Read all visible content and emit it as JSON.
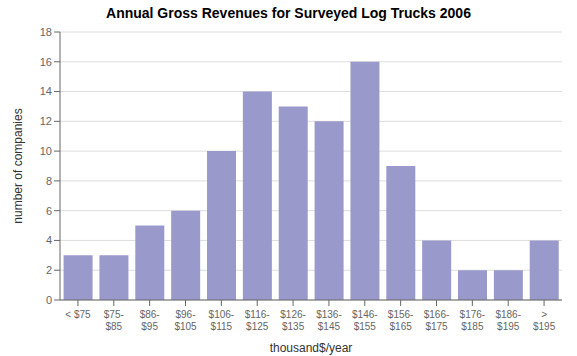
{
  "chart_data": {
    "type": "bar",
    "title": "Annual Gross Revenues for Surveyed Log Trucks 2006",
    "xlabel": "thousand$/year",
    "ylabel": "number of companies",
    "categories": [
      "< $75",
      "$75-\n$85",
      "$86-\n$95",
      "$96-\n$105",
      "$106-\n$115",
      "$116-\n$125",
      "$126-\n$135",
      "$136-\n$145",
      "$146-\n$155",
      "$156-\n$165",
      "$166-\n$175",
      "$176-\n$185",
      "$186-\n$195",
      ">\n$195"
    ],
    "values": [
      3,
      3,
      5,
      6,
      10,
      14,
      13,
      12,
      16,
      9,
      4,
      2,
      2,
      4
    ],
    "color": "#9999cc",
    "ylim": [
      0,
      18
    ],
    "yticks": [
      0,
      2,
      4,
      6,
      8,
      10,
      12,
      14,
      16,
      18
    ],
    "grid": true
  }
}
